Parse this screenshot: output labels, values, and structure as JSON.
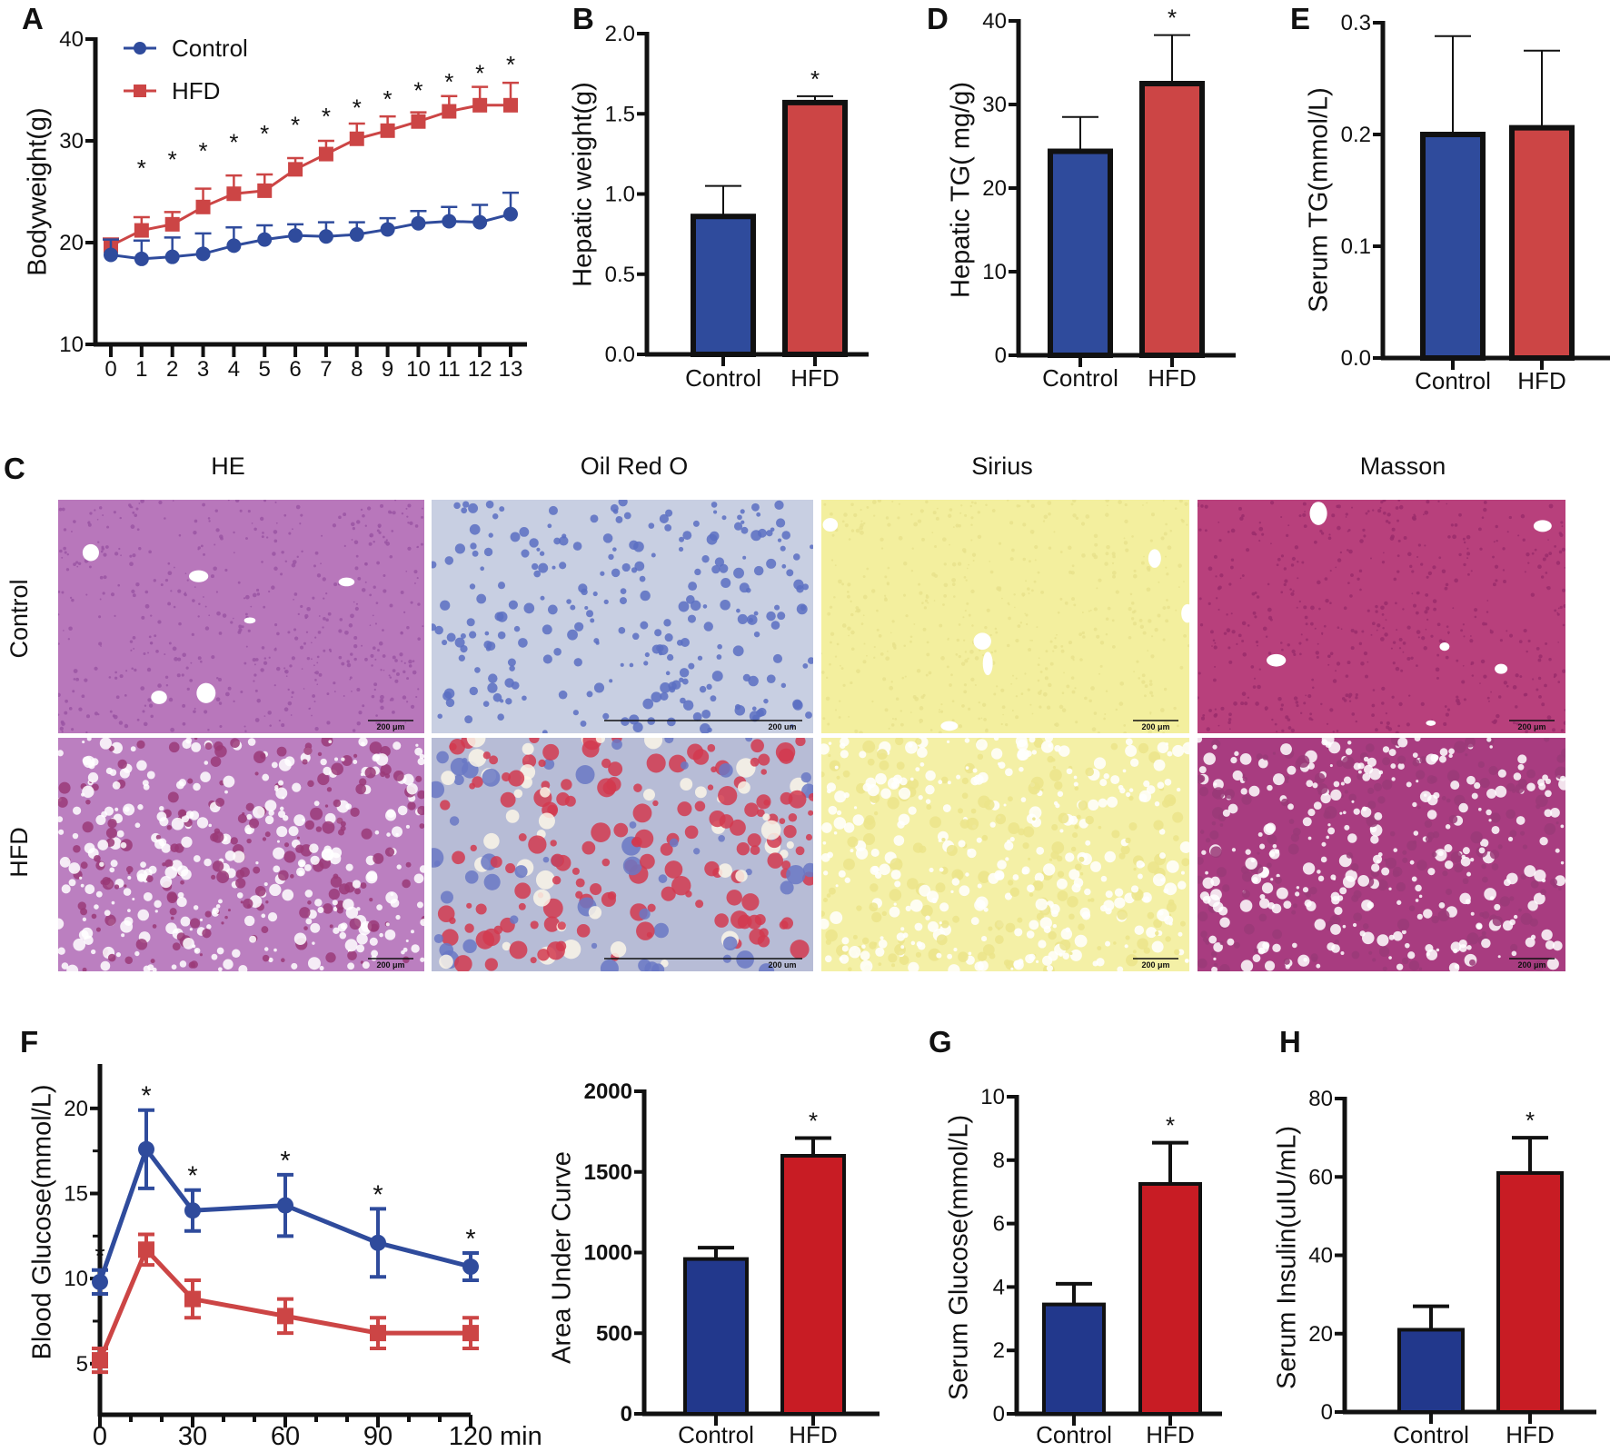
{
  "panel_letters": {
    "A": "A",
    "B": "B",
    "C": "C",
    "D": "D",
    "E": "E",
    "F": "F",
    "G": "G",
    "H": "H"
  },
  "legend": {
    "control": "Control",
    "hfd": "HFD"
  },
  "sig_marker": "*",
  "colors": {
    "control": "#2f4b9c",
    "hfd": "#cc4545",
    "control_dark": "#22388c",
    "hfd_dark": "#c81c24",
    "axis": "#111111"
  },
  "histology": {
    "columns": [
      "HE",
      "Oil Red O",
      "Sirius",
      "Masson"
    ],
    "rows": [
      "Control",
      "HFD"
    ],
    "scale_bars": [
      [
        "200 μm",
        "200 um",
        "200 μm",
        "200 μm"
      ],
      [
        "200 μm",
        "200 um",
        "200 μm",
        "200 μm"
      ]
    ]
  },
  "chart_data": [
    {
      "id": "A",
      "type": "line",
      "title": "",
      "xlabel": "",
      "ylabel": "Bodyweight(g)",
      "ylim": [
        10,
        40
      ],
      "yticks": [
        "10",
        "20",
        "30",
        "40"
      ],
      "x": [
        0,
        1,
        2,
        3,
        4,
        5,
        6,
        7,
        8,
        9,
        10,
        11,
        12,
        13
      ],
      "xticks": [
        "0",
        "1",
        "2",
        "3",
        "4",
        "5",
        "6",
        "7",
        "8",
        "9",
        "10",
        "11",
        "12",
        "13"
      ],
      "legend": "top-left",
      "series": [
        {
          "name": "Control",
          "values": [
            18.8,
            18.4,
            18.6,
            18.9,
            19.7,
            20.3,
            20.7,
            20.6,
            20.8,
            21.3,
            21.9,
            22.1,
            22.0,
            22.8
          ],
          "errors": [
            1.5,
            1.8,
            1.9,
            2.0,
            1.8,
            1.4,
            1.1,
            1.4,
            1.2,
            1.1,
            1.2,
            1.4,
            1.7,
            2.1
          ]
        },
        {
          "name": "HFD",
          "values": [
            19.7,
            21.2,
            21.8,
            23.5,
            24.8,
            25.1,
            27.2,
            28.7,
            30.2,
            31.0,
            31.9,
            32.9,
            33.5,
            33.5
          ],
          "errors": [
            0.7,
            1.3,
            1.2,
            1.8,
            1.8,
            1.6,
            1.1,
            1.3,
            1.5,
            1.4,
            0.9,
            1.5,
            1.8,
            2.2
          ]
        }
      ],
      "significant": [
        false,
        true,
        true,
        true,
        true,
        true,
        true,
        true,
        true,
        true,
        true,
        true,
        true,
        true
      ]
    },
    {
      "id": "B",
      "type": "bar",
      "ylabel": "Hepatic weight(g)",
      "ylim": [
        0,
        2
      ],
      "yticks": [
        "0.0",
        "0.5",
        "1.0",
        "1.5",
        "2.0"
      ],
      "categories": [
        "Control",
        "HFD"
      ],
      "values": [
        0.86,
        1.57
      ],
      "errors": [
        0.19,
        0.04
      ],
      "significant": [
        false,
        true
      ]
    },
    {
      "id": "D",
      "type": "bar",
      "ylabel": "Hepatic TG( mg/g)",
      "ylim": [
        0,
        40
      ],
      "yticks": [
        "0",
        "10",
        "20",
        "30",
        "40"
      ],
      "categories": [
        "Control",
        "HFD"
      ],
      "values": [
        24.4,
        32.5
      ],
      "errors": [
        4.1,
        5.8
      ],
      "significant": [
        false,
        true
      ]
    },
    {
      "id": "E",
      "type": "bar",
      "ylabel": "Serum TG(mmol/L)",
      "ylim": [
        0,
        0.3
      ],
      "yticks": [
        "0.0",
        "0.1",
        "0.2",
        "0.3"
      ],
      "categories": [
        "Control",
        "HFD"
      ],
      "values": [
        0.2,
        0.206
      ],
      "errors": [
        0.088,
        0.069
      ],
      "significant": [
        false,
        false
      ]
    },
    {
      "id": "F",
      "type": "line",
      "ylabel": "Blood Glucose(mmol/L)",
      "xlabel": "min",
      "ylim": [
        2,
        22.5
      ],
      "yticks": [
        "5",
        "10",
        "15",
        "20"
      ],
      "x": [
        0,
        15,
        30,
        60,
        90,
        120
      ],
      "xticks": [
        "0",
        "30",
        "60",
        "90",
        "120"
      ],
      "series": [
        {
          "name": "Control",
          "values": [
            9.8,
            17.6,
            14.0,
            14.3,
            12.1,
            10.7
          ],
          "errors": [
            0.7,
            2.3,
            1.2,
            1.8,
            2.0,
            0.8
          ]
        },
        {
          "name": "HFD",
          "values": [
            5.2,
            11.7,
            8.8,
            7.8,
            6.8,
            6.8
          ],
          "errors": [
            0.7,
            0.9,
            1.1,
            1.0,
            0.9,
            0.9
          ]
        }
      ],
      "significant": [
        true,
        true,
        true,
        true,
        true,
        true
      ]
    },
    {
      "id": "AUC",
      "type": "bar",
      "ylabel": "Area Under Curve",
      "ylim": [
        0,
        2000
      ],
      "yticks": [
        "0",
        "500",
        "1000",
        "1500",
        "2000"
      ],
      "categories": [
        "Control",
        "HFD"
      ],
      "values": [
        960,
        1600
      ],
      "errors": [
        70,
        110
      ],
      "significant": [
        false,
        true
      ]
    },
    {
      "id": "G",
      "type": "bar",
      "ylabel": "Serum Glucose(mmol/L)",
      "ylim": [
        0,
        10
      ],
      "yticks": [
        "0",
        "2",
        "4",
        "6",
        "8",
        "10"
      ],
      "categories": [
        "Control",
        "HFD"
      ],
      "values": [
        3.45,
        7.25
      ],
      "errors": [
        0.65,
        1.3
      ],
      "significant": [
        false,
        true
      ]
    },
    {
      "id": "H",
      "type": "bar",
      "ylabel": "Serum Insulin(uIU/mL)",
      "ylim": [
        0,
        80
      ],
      "yticks": [
        "0",
        "20",
        "40",
        "60",
        "80"
      ],
      "categories": [
        "Control",
        "HFD"
      ],
      "values": [
        21,
        61
      ],
      "errors": [
        6,
        9
      ],
      "significant": [
        false,
        true
      ]
    }
  ]
}
